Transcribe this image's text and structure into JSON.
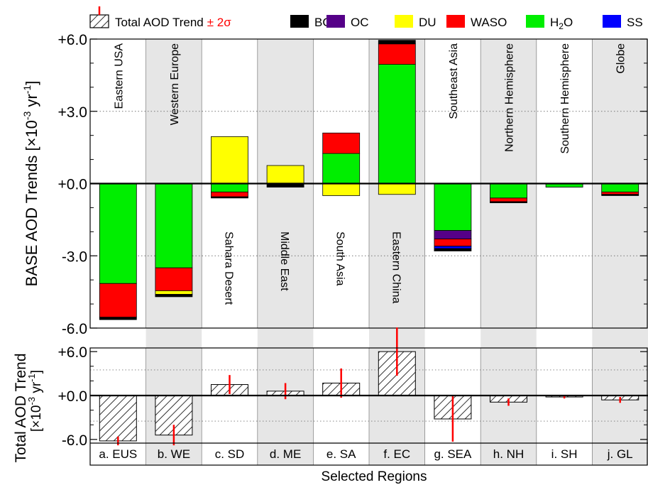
{
  "chart_data": [
    {
      "type": "bar",
      "stacked": true,
      "ylabel_main": "BASE AOD Trends [×10",
      "ylabel_exp": "-3",
      "ylabel_unit": " yr",
      "ylabel_exp2": "-1",
      "ylabel_close": "]",
      "ylim": [
        -6.0,
        6.0
      ],
      "yticks": [
        6.0,
        3.0,
        0.0,
        -3.0,
        -6.0
      ],
      "ytick_labels": [
        "+6.0",
        "+3.0",
        "+0.0",
        "-3.0",
        "-6.0"
      ],
      "grid": "dotted at ±3.0",
      "region_names": [
        "Eastern USA",
        "Western Europe",
        "Sahara Desert",
        "Middle East",
        "South Asia",
        "Eastern China",
        "Southeast Asia",
        "Northern Hemisphere",
        "Southern Hemisphere",
        "Globe"
      ],
      "series_order": [
        "BC",
        "OC",
        "DU",
        "WASO",
        "H2O",
        "SS"
      ],
      "stacks": [
        {
          "pos": [],
          "neg": [
            {
              "s": "H2O",
              "v": -4.15
            },
            {
              "s": "WASO",
              "v": -1.4
            },
            {
              "s": "BC",
              "v": -0.1
            }
          ]
        },
        {
          "pos": [],
          "neg": [
            {
              "s": "H2O",
              "v": -3.5
            },
            {
              "s": "WASO",
              "v": -0.95
            },
            {
              "s": "DU",
              "v": -0.15
            },
            {
              "s": "BC",
              "v": -0.1
            }
          ]
        },
        {
          "pos": [
            {
              "s": "DU",
              "v": 1.95
            }
          ],
          "neg": [
            {
              "s": "H2O",
              "v": -0.35
            },
            {
              "s": "WASO",
              "v": -0.2
            },
            {
              "s": "BC",
              "v": -0.05
            }
          ]
        },
        {
          "pos": [
            {
              "s": "DU",
              "v": 0.75
            }
          ],
          "neg": [
            {
              "s": "BC",
              "v": -0.15
            }
          ]
        },
        {
          "pos": [
            {
              "s": "H2O",
              "v": 1.25
            },
            {
              "s": "WASO",
              "v": 0.85
            }
          ],
          "neg": [
            {
              "s": "DU",
              "v": -0.5
            }
          ]
        },
        {
          "pos": [
            {
              "s": "H2O",
              "v": 4.95
            },
            {
              "s": "WASO",
              "v": 0.85
            },
            {
              "s": "BC",
              "v": 0.15
            }
          ],
          "neg": [
            {
              "s": "DU",
              "v": -0.45
            }
          ]
        },
        {
          "pos": [],
          "neg": [
            {
              "s": "H2O",
              "v": -1.95
            },
            {
              "s": "OC",
              "v": -0.35
            },
            {
              "s": "WASO",
              "v": -0.3
            },
            {
              "s": "SS",
              "v": -0.1
            },
            {
              "s": "BC",
              "v": -0.1
            }
          ]
        },
        {
          "pos": [],
          "neg": [
            {
              "s": "H2O",
              "v": -0.6
            },
            {
              "s": "WASO",
              "v": -0.15
            },
            {
              "s": "BC",
              "v": -0.05
            }
          ]
        },
        {
          "pos": [],
          "neg": [
            {
              "s": "H2O",
              "v": -0.15
            }
          ]
        },
        {
          "pos": [],
          "neg": [
            {
              "s": "H2O",
              "v": -0.35
            },
            {
              "s": "WASO",
              "v": -0.1
            },
            {
              "s": "BC",
              "v": -0.05
            }
          ]
        }
      ]
    },
    {
      "type": "bar",
      "ylabel_line1": "Total AOD Trend",
      "ylabel_open": "[×10",
      "ylabel_exp": "-3",
      "ylabel_unit": " yr",
      "ylabel_exp2": "-1",
      "ylabel_close": "]",
      "xlabel": "Selected Regions",
      "ylim": [
        -6.5,
        6.5
      ],
      "yticks": [
        6.0,
        0.0,
        -6.0
      ],
      "ytick_labels": [
        "+6.0",
        "+0.0",
        "-6.0"
      ],
      "grid": "dotted at ±3.5",
      "categories": [
        "a. EUS",
        "b. WE",
        "c. SD",
        "d. ME",
        "e. SA",
        "f. EC",
        "g. SEA",
        "h. NH",
        "i. SH",
        "j. GL"
      ],
      "values": [
        -6.2,
        -5.4,
        1.5,
        0.6,
        1.7,
        6.0,
        -3.2,
        -0.9,
        -0.2,
        -0.6
      ],
      "error_2sigma": [
        0.6,
        1.4,
        1.3,
        1.1,
        2.0,
        3.3,
        3.1,
        0.5,
        0.2,
        0.4
      ]
    }
  ],
  "legend": {
    "total_label": "Total AOD Trend",
    "total_suffix": "± 2σ",
    "items": [
      {
        "key": "BC",
        "label": "BC",
        "color": "#000000"
      },
      {
        "key": "OC",
        "label": "OC",
        "color": "#550088"
      },
      {
        "key": "DU",
        "label": "DU",
        "color": "#ffff00"
      },
      {
        "key": "WASO",
        "label": "WASO",
        "color": "#ff0000"
      },
      {
        "key": "H2O",
        "label": "H",
        "sub": "2",
        "tail": "O",
        "color": "#00ee00"
      },
      {
        "key": "SS",
        "label": "SS",
        "color": "#0000ff"
      }
    ]
  },
  "colors": {
    "error_bar": "#ff0000",
    "band": "#e6e6e6"
  }
}
